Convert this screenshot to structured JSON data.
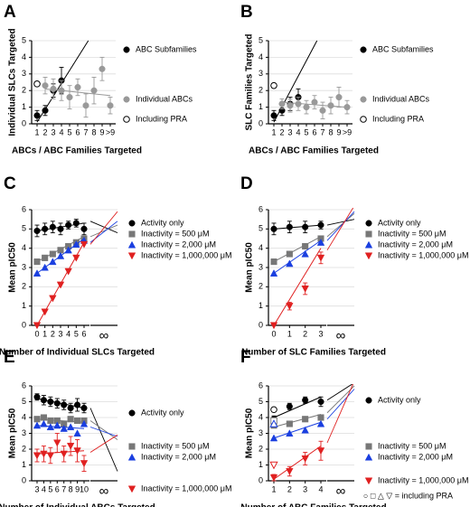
{
  "chart_data": [
    {
      "type": "scatter",
      "letter": "A",
      "ylabel": "Individual SLCs Targeted",
      "xlabel": "ABCs / ABC Families Targeted",
      "categories": [
        "1",
        "2",
        "3",
        "4",
        "5",
        "6",
        "7",
        "8",
        "9",
        ">9"
      ],
      "ylim": [
        0,
        5
      ],
      "yticks": [
        0,
        1,
        2,
        3,
        4,
        5
      ],
      "grid": true,
      "series": [
        {
          "name": "ABC Subfamilies",
          "color": "#000000",
          "marker": "circle",
          "values": [
            0.5,
            0.8,
            2.0,
            2.6,
            null,
            null,
            null,
            null,
            null,
            null
          ],
          "errors": [
            0.3,
            0.3,
            0.4,
            0.8,
            null,
            null,
            null,
            null,
            null,
            null
          ],
          "fit": [
            [
              0,
              0.1
            ],
            [
              6.3,
              5
            ]
          ]
        },
        {
          "name": "Individual ABCs",
          "color": "#999999",
          "marker": "circle",
          "values": [
            null,
            2.3,
            2.1,
            2.0,
            1.6,
            2.2,
            1.1,
            2.0,
            3.3,
            1.1
          ],
          "errors": [
            null,
            0.5,
            0.6,
            0.6,
            0.7,
            0.5,
            0.7,
            0.8,
            0.7,
            0.5
          ],
          "fit": [
            [
              1,
              2.1
            ],
            [
              9,
              1.7
            ]
          ]
        },
        {
          "name": "Including PRA",
          "color": "#000000",
          "marker": "circle",
          "open": true,
          "values": [
            2.4,
            null,
            null,
            null,
            null,
            null,
            null,
            null,
            null,
            null
          ]
        }
      ]
    },
    {
      "type": "scatter",
      "letter": "B",
      "ylabel": "SLC Families Targeted",
      "xlabel": "ABCs / ABC Families Targeted",
      "categories": [
        "1",
        "2",
        "3",
        "4",
        "5",
        "6",
        "7",
        "8",
        "9",
        ">9"
      ],
      "ylim": [
        0,
        5
      ],
      "yticks": [
        0,
        1,
        2,
        3,
        4,
        5
      ],
      "grid": true,
      "series": [
        {
          "name": "ABC Subfamilies",
          "color": "#000000",
          "marker": "circle",
          "values": [
            0.5,
            0.8,
            1.2,
            1.6,
            null,
            null,
            null,
            null,
            null,
            null
          ],
          "errors": [
            0.3,
            0.3,
            0.4,
            0.5,
            null,
            null,
            null,
            null,
            null,
            null
          ],
          "fit": [
            [
              0,
              0.1
            ],
            [
              5.3,
              5
            ]
          ]
        },
        {
          "name": "Individual ABCs",
          "color": "#999999",
          "marker": "circle",
          "values": [
            null,
            1.2,
            1.1,
            1.2,
            1.0,
            1.3,
            0.8,
            1.1,
            1.6,
            1.0
          ],
          "errors": [
            null,
            0.3,
            0.4,
            0.4,
            0.4,
            0.4,
            0.5,
            0.5,
            0.6,
            0.4
          ],
          "fit": [
            [
              1,
              1.3
            ],
            [
              9,
              1.0
            ]
          ]
        },
        {
          "name": "Including PRA",
          "color": "#000000",
          "marker": "circle",
          "open": true,
          "values": [
            2.3,
            null,
            null,
            null,
            null,
            null,
            null,
            null,
            null,
            null
          ]
        }
      ]
    },
    {
      "type": "scatter",
      "letter": "C",
      "ylabel": "Mean pIC50",
      "xlabel": "Number of Individual SLCs Targeted",
      "inf_label": "∞",
      "categories": [
        "0",
        "1",
        "2",
        "3",
        "4",
        "5",
        "6"
      ],
      "ylim": [
        0,
        6
      ],
      "yticks": [
        0,
        1,
        2,
        3,
        4,
        5,
        6
      ],
      "grid": true,
      "series": [
        {
          "name": "Activity only",
          "color": "#000000",
          "marker": "circle",
          "values": [
            4.9,
            5.0,
            5.1,
            5.0,
            5.2,
            5.3,
            5.0
          ],
          "errors": [
            0.3,
            0.3,
            0.3,
            0.3,
            0.2,
            0.2,
            0.3
          ],
          "fit": [
            [
              0,
              4.9
            ],
            [
              6,
              5.3
            ]
          ],
          "inf": [
            5.4,
            4.8
          ]
        },
        {
          "name": "Inactivity = 500 μM",
          "color": "#777777",
          "marker": "square",
          "values": [
            3.3,
            3.5,
            3.7,
            3.9,
            4.1,
            4.3,
            4.5
          ],
          "fit": [
            [
              0,
              3.3
            ],
            [
              6,
              4.6
            ]
          ],
          "inf": [
            4.6,
            5.2
          ]
        },
        {
          "name": "Inactivity = 2,000 μM",
          "color": "#1a3fe0",
          "marker": "triangle",
          "values": [
            2.7,
            3.0,
            3.3,
            3.6,
            3.9,
            4.2,
            4.4
          ],
          "fit": [
            [
              0,
              2.7
            ],
            [
              6,
              4.5
            ]
          ],
          "inf": [
            4.3,
            5.4
          ]
        },
        {
          "name": "Inactivity = 1,000,000 μM",
          "color": "#e02020",
          "marker": "tri-down",
          "values": [
            0.0,
            0.7,
            1.4,
            2.1,
            2.8,
            3.5,
            4.2
          ],
          "fit": [
            [
              0,
              0
            ],
            [
              6,
              4.3
            ]
          ],
          "inf": [
            4.2,
            5.9
          ]
        }
      ]
    },
    {
      "type": "scatter",
      "letter": "D",
      "ylabel": "Mean pIC50",
      "xlabel": "Number of SLC Families Targeted",
      "inf_label": "∞",
      "categories": [
        "0",
        "1",
        "2",
        "3"
      ],
      "ylim": [
        0,
        6
      ],
      "yticks": [
        0,
        1,
        2,
        3,
        4,
        5,
        6
      ],
      "grid": true,
      "series": [
        {
          "name": "Activity only",
          "color": "#000000",
          "marker": "circle",
          "values": [
            5.0,
            5.1,
            5.1,
            5.2
          ],
          "errors": [
            0.3,
            0.3,
            0.3,
            0.2
          ],
          "fit": [
            [
              0,
              5.0
            ],
            [
              3,
              5.2
            ]
          ],
          "inf": [
            5.2,
            5.5
          ]
        },
        {
          "name": "Inactivity = 500 μM",
          "color": "#777777",
          "marker": "square",
          "values": [
            3.3,
            3.7,
            4.1,
            4.5
          ],
          "fit": [
            [
              0,
              3.3
            ],
            [
              3,
              4.6
            ]
          ],
          "inf": [
            4.6,
            5.8
          ]
        },
        {
          "name": "Inactivity = 2,000 μM",
          "color": "#1a3fe0",
          "marker": "triangle",
          "values": [
            2.7,
            3.2,
            3.7,
            4.3
          ],
          "fit": [
            [
              0,
              2.7
            ],
            [
              3,
              4.4
            ]
          ],
          "inf": [
            4.4,
            5.9
          ]
        },
        {
          "name": "Inactivity = 1,000,000 μM",
          "color": "#e02020",
          "marker": "tri-down",
          "values": [
            0.0,
            1.0,
            1.9,
            3.5
          ],
          "errors": [
            null,
            0.2,
            0.3,
            0.3
          ],
          "fit": [
            [
              0,
              0
            ],
            [
              3,
              4.0
            ]
          ],
          "inf": [
            3.9,
            6.2
          ]
        }
      ]
    },
    {
      "type": "scatter",
      "letter": "E",
      "ylabel": "Mean pIC50",
      "xlabel": "Number of Individual ABCs Targeted",
      "inf_label": "∞",
      "categories": [
        "3",
        "4",
        "5",
        "6",
        "7",
        "8",
        "9",
        "10"
      ],
      "ylim": [
        0,
        6
      ],
      "yticks": [
        0,
        1,
        2,
        3,
        4,
        5,
        6
      ],
      "grid": true,
      "series": [
        {
          "name": "Activity only",
          "color": "#000000",
          "marker": "circle",
          "values": [
            5.3,
            5.1,
            5.0,
            4.9,
            4.8,
            4.6,
            4.8,
            4.6
          ],
          "errors": [
            0.2,
            0.3,
            0.3,
            0.3,
            0.3,
            0.3,
            0.4,
            0.3
          ],
          "fit": [
            [
              0,
              5.2
            ],
            [
              7,
              4.6
            ]
          ],
          "inf": [
            4.6,
            0.6
          ]
        },
        {
          "name": "Inactivity = 500 μM",
          "color": "#777777",
          "marker": "square",
          "values": [
            3.9,
            4.0,
            3.8,
            3.8,
            3.6,
            3.9,
            3.8,
            3.8
          ],
          "fit": [
            [
              0,
              3.9
            ],
            [
              7,
              3.7
            ]
          ],
          "inf": [
            3.8,
            2.6
          ]
        },
        {
          "name": "Inactivity = 2,000 μM",
          "color": "#1a3fe0",
          "marker": "triangle",
          "values": [
            3.5,
            3.6,
            3.4,
            3.5,
            3.3,
            3.4,
            3.0,
            3.6
          ],
          "fit": [
            [
              0,
              3.5
            ],
            [
              7,
              3.3
            ]
          ],
          "inf": [
            3.4,
            2.8
          ]
        },
        {
          "name": "Inactivity = 1,000,000 μM",
          "color": "#e02020",
          "marker": "tri-down",
          "values": [
            1.6,
            1.7,
            1.6,
            2.4,
            1.7,
            2.2,
            1.9,
            1.1
          ],
          "errors": [
            0.4,
            0.5,
            0.5,
            0.6,
            0.5,
            0.6,
            0.7,
            0.5
          ],
          "fit": [
            [
              0,
              1.7
            ],
            [
              7,
              1.9
            ]
          ],
          "inf": [
            1.8,
            2.9
          ]
        }
      ]
    },
    {
      "type": "scatter",
      "letter": "F",
      "ylabel": "Mean pIC50",
      "xlabel": "Number of ABC Families Targeted",
      "inf_label": "∞",
      "note": "○ □ △ ▽ = including PRA",
      "categories": [
        "1",
        "2",
        "3",
        "4"
      ],
      "ylim": [
        0,
        6
      ],
      "yticks": [
        0,
        1,
        2,
        3,
        4,
        5,
        6
      ],
      "grid": true,
      "series": [
        {
          "name": "Activity only",
          "color": "#000000",
          "marker": "circle",
          "values": [
            3.9,
            4.7,
            5.1,
            5.0
          ],
          "errors": [
            0.2,
            0.2,
            0.2,
            0.3
          ],
          "pra_values": [
            4.5,
            null,
            null,
            null
          ],
          "fit": [
            [
              0,
              4.0
            ],
            [
              3,
              5.3
            ]
          ],
          "inf": [
            5.1,
            6.2
          ]
        },
        {
          "name": "Inactivity = 500 μM",
          "color": "#777777",
          "marker": "square",
          "values": [
            3.5,
            3.6,
            3.9,
            4.0
          ],
          "pra_values": [
            3.8,
            null,
            null,
            null
          ],
          "fit": [
            [
              0,
              3.4
            ],
            [
              3,
              4.2
            ]
          ],
          "inf": [
            4.3,
            6.0
          ]
        },
        {
          "name": "Inactivity = 2,000 μM",
          "color": "#1a3fe0",
          "marker": "triangle",
          "values": [
            2.7,
            3.0,
            3.2,
            3.6
          ],
          "pra_values": [
            3.6,
            null,
            null,
            null
          ],
          "fit": [
            [
              0,
              2.7
            ],
            [
              3,
              3.7
            ]
          ],
          "inf": [
            3.9,
            5.8
          ]
        },
        {
          "name": "Inactivity = 1,000,000 μM",
          "color": "#e02020",
          "marker": "tri-down",
          "values": [
            0.2,
            0.6,
            1.4,
            1.9
          ],
          "errors": [
            0.2,
            0.3,
            0.4,
            0.6
          ],
          "pra_values": [
            1.0,
            null,
            null,
            null
          ],
          "fit": [
            [
              0,
              0.1
            ],
            [
              3,
              2.2
            ]
          ],
          "inf": [
            2.4,
            6.3
          ]
        }
      ]
    }
  ]
}
